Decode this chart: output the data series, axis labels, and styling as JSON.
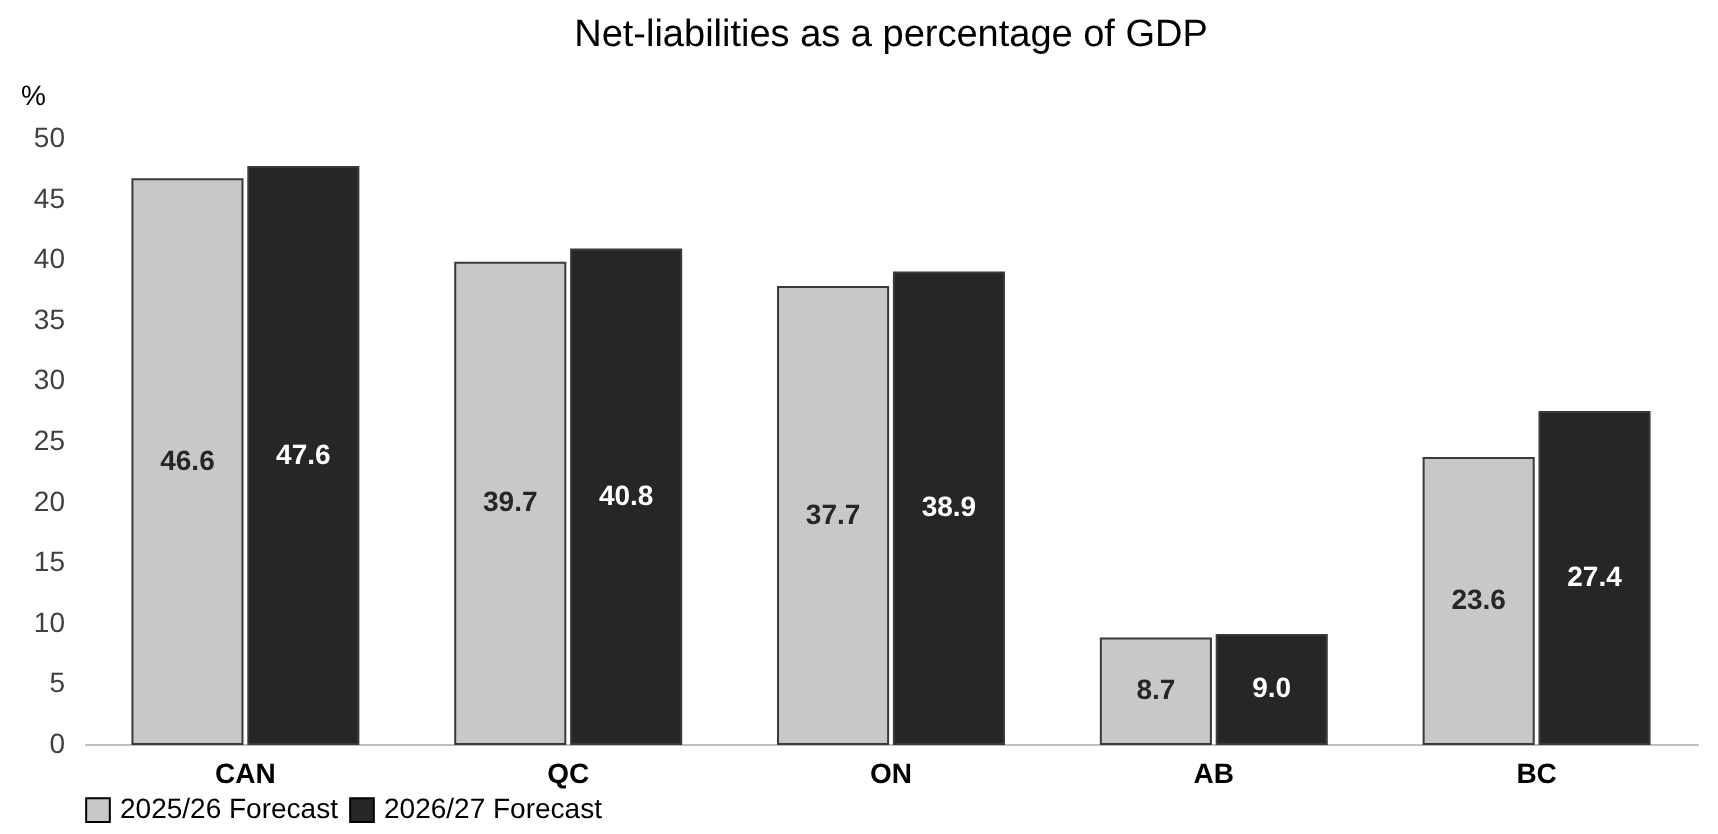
{
  "chart_data": {
    "type": "bar",
    "title": "Net-liabilities as a percentage of GDP",
    "ylabel": "%",
    "categories": [
      "CAN",
      "QC",
      "ON",
      "AB",
      "BC"
    ],
    "series": [
      {
        "name": "2025/26 Forecast",
        "color": "#c8c8c8",
        "values": [
          46.6,
          39.7,
          37.7,
          8.7,
          23.6
        ],
        "value_labels": [
          "46.6",
          "39.7",
          "37.7",
          "8.7",
          "23.6"
        ]
      },
      {
        "name": "2026/27 Forecast",
        "color": "#262626",
        "values": [
          47.6,
          40.8,
          38.9,
          9.0,
          27.4
        ],
        "value_labels": [
          "47.6",
          "40.8",
          "38.9",
          "9.0",
          "27.4"
        ]
      }
    ],
    "ylim": [
      0,
      50
    ],
    "yticks": [
      0,
      5,
      10,
      15,
      20,
      25,
      30,
      35,
      40,
      45,
      50
    ],
    "grid": false,
    "legend": "bottom"
  }
}
